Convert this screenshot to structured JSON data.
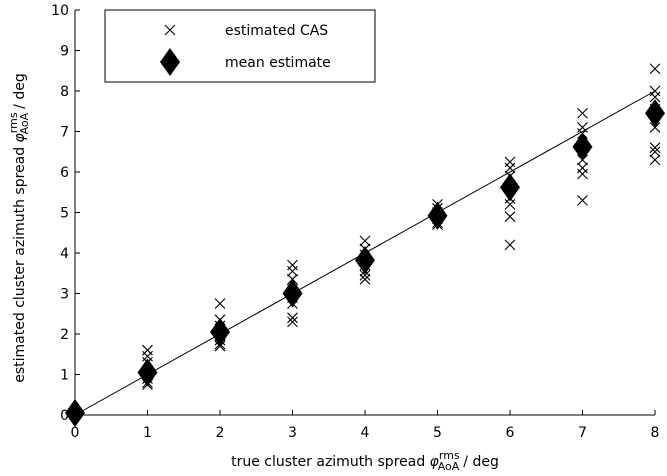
{
  "chart_data": {
    "type": "scatter",
    "xlabel": {
      "text": "true cluster azimuth spread",
      "symbol": "φ",
      "sup": "rms",
      "sub": "AoA",
      "unit": "/ deg"
    },
    "ylabel": {
      "text": "estimated cluster azimuth spread",
      "symbol": "φ",
      "sup": "rms",
      "sub": "AoA",
      "unit": "/ deg"
    },
    "xlim": [
      0,
      8
    ],
    "ylim": [
      0,
      10
    ],
    "xticks": [
      0,
      1,
      2,
      3,
      4,
      5,
      6,
      7,
      8
    ],
    "yticks": [
      0,
      1,
      2,
      3,
      4,
      5,
      6,
      7,
      8,
      9,
      10
    ],
    "legend": "upper left",
    "reference_line": {
      "x": [
        0,
        8
      ],
      "y": [
        0,
        8
      ],
      "color": "#000000"
    },
    "series": [
      {
        "name": "estimated CAS",
        "marker": "x",
        "color": "#000000",
        "x": [
          0,
          0,
          0,
          0,
          1,
          1,
          1,
          1,
          1,
          1,
          1,
          1,
          2,
          2,
          2,
          2,
          2,
          2,
          2,
          2,
          3,
          3,
          3,
          3,
          3,
          3,
          3,
          3,
          4,
          4,
          4,
          4,
          4,
          4,
          4,
          4,
          5,
          5,
          5,
          5,
          5,
          5,
          5,
          5,
          6,
          6,
          6,
          6,
          6,
          6,
          6,
          6,
          7,
          7,
          7,
          7,
          7,
          7,
          7,
          7,
          8,
          8,
          8,
          8,
          8,
          8,
          8,
          8
        ],
        "values": [
          0,
          0,
          0,
          0,
          1.6,
          1.45,
          1.3,
          1.1,
          1.0,
          0.9,
          0.8,
          0.75,
          2.75,
          2.35,
          2.2,
          2.05,
          1.95,
          1.85,
          1.75,
          1.7,
          3.7,
          3.55,
          3.35,
          3.1,
          2.9,
          2.75,
          2.4,
          2.3,
          4.3,
          4.1,
          3.95,
          3.85,
          3.7,
          3.55,
          3.45,
          3.35,
          5.2,
          5.1,
          5.0,
          4.95,
          4.9,
          4.85,
          4.75,
          4.7,
          6.25,
          6.1,
          5.9,
          5.6,
          5.35,
          5.2,
          4.9,
          4.2,
          7.45,
          7.1,
          6.95,
          6.6,
          6.3,
          6.1,
          5.95,
          5.3,
          8.55,
          8.0,
          7.85,
          7.55,
          7.1,
          6.6,
          6.5,
          6.3
        ]
      },
      {
        "name": "mean estimate",
        "marker": "diamond",
        "color": "#000000",
        "x": [
          0,
          1,
          2,
          3,
          4,
          5,
          6,
          7,
          8
        ],
        "values": [
          0.05,
          1.05,
          2.05,
          3.0,
          3.82,
          4.92,
          5.62,
          6.62,
          7.45
        ]
      }
    ]
  }
}
